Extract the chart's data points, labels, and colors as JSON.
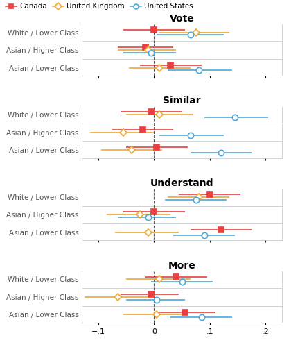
{
  "sections": [
    "Vote",
    "Similar",
    "Understand",
    "More"
  ],
  "row_labels": [
    "White / Lower Class",
    "Asian / Higher Class",
    "Asian / Lower Class"
  ],
  "countries": [
    "Canada",
    "United Kingdom",
    "United States"
  ],
  "colors": [
    "#E84040",
    "#F0A830",
    "#4BA8D8"
  ],
  "markers": [
    "s",
    "D",
    "o"
  ],
  "xlim": [
    -0.13,
    0.23
  ],
  "xticks": [
    -0.1,
    0,
    0.1,
    0.2
  ],
  "xticklabels": [
    "−.1",
    "0",
    ".1",
    ".2"
  ],
  "data": {
    "Vote": {
      "White / Lower Class": {
        "Canada": {
          "mean": 0.0,
          "lo": -0.055,
          "hi": 0.055
        },
        "United Kingdom": {
          "mean": 0.075,
          "lo": 0.01,
          "hi": 0.135
        },
        "United States": {
          "mean": 0.065,
          "lo": 0.005,
          "hi": 0.125
        }
      },
      "Asian / Higher Class": {
        "Canada": {
          "mean": -0.015,
          "lo": -0.065,
          "hi": 0.035
        },
        "United Kingdom": {
          "mean": -0.01,
          "lo": -0.065,
          "hi": 0.04
        },
        "United States": {
          "mean": -0.005,
          "lo": -0.055,
          "hi": 0.04
        }
      },
      "Asian / Lower Class": {
        "Canada": {
          "mean": 0.03,
          "lo": -0.025,
          "hi": 0.085
        },
        "United Kingdom": {
          "mean": 0.01,
          "lo": -0.045,
          "hi": 0.065
        },
        "United States": {
          "mean": 0.08,
          "lo": 0.025,
          "hi": 0.14
        }
      }
    },
    "Similar": {
      "White / Lower Class": {
        "Canada": {
          "mean": -0.005,
          "lo": -0.06,
          "hi": 0.05
        },
        "United Kingdom": {
          "mean": 0.01,
          "lo": -0.05,
          "hi": 0.07
        },
        "United States": {
          "mean": 0.145,
          "lo": 0.09,
          "hi": 0.205
        }
      },
      "Asian / Higher Class": {
        "Canada": {
          "mean": -0.02,
          "lo": -0.075,
          "hi": 0.035
        },
        "United Kingdom": {
          "mean": -0.055,
          "lo": -0.115,
          "hi": 0.0
        },
        "United States": {
          "mean": 0.065,
          "lo": 0.01,
          "hi": 0.125
        }
      },
      "Asian / Lower Class": {
        "Canada": {
          "mean": 0.005,
          "lo": -0.05,
          "hi": 0.06
        },
        "United Kingdom": {
          "mean": -0.04,
          "lo": -0.095,
          "hi": 0.015
        },
        "United States": {
          "mean": 0.12,
          "lo": 0.065,
          "hi": 0.175
        }
      }
    },
    "Understand": {
      "White / Lower Class": {
        "Canada": {
          "mean": 0.1,
          "lo": 0.045,
          "hi": 0.155
        },
        "United Kingdom": {
          "mean": 0.08,
          "lo": 0.025,
          "hi": 0.135
        },
        "United States": {
          "mean": 0.075,
          "lo": 0.02,
          "hi": 0.13
        }
      },
      "Asian / Higher Class": {
        "Canada": {
          "mean": 0.0,
          "lo": -0.055,
          "hi": 0.055
        },
        "United Kingdom": {
          "mean": -0.025,
          "lo": -0.085,
          "hi": 0.03
        },
        "United States": {
          "mean": -0.01,
          "lo": -0.065,
          "hi": 0.04
        }
      },
      "Asian / Lower Class": {
        "Canada": {
          "mean": 0.12,
          "lo": 0.065,
          "hi": 0.175
        },
        "United Kingdom": {
          "mean": -0.01,
          "lo": -0.07,
          "hi": 0.045
        },
        "United States": {
          "mean": 0.09,
          "lo": 0.035,
          "hi": 0.145
        }
      }
    },
    "More": {
      "White / Lower Class": {
        "Canada": {
          "mean": 0.04,
          "lo": -0.015,
          "hi": 0.095
        },
        "United Kingdom": {
          "mean": 0.01,
          "lo": -0.05,
          "hi": 0.065
        },
        "United States": {
          "mean": 0.05,
          "lo": -0.005,
          "hi": 0.105
        }
      },
      "Asian / Higher Class": {
        "Canada": {
          "mean": -0.005,
          "lo": -0.06,
          "hi": 0.045
        },
        "United Kingdom": {
          "mean": -0.065,
          "lo": -0.125,
          "hi": -0.005
        },
        "United States": {
          "mean": 0.005,
          "lo": -0.05,
          "hi": 0.055
        }
      },
      "Asian / Lower Class": {
        "Canada": {
          "mean": 0.055,
          "lo": 0.0,
          "hi": 0.11
        },
        "United Kingdom": {
          "mean": 0.005,
          "lo": -0.055,
          "hi": 0.06
        },
        "United States": {
          "mean": 0.085,
          "lo": 0.03,
          "hi": 0.14
        }
      }
    }
  }
}
